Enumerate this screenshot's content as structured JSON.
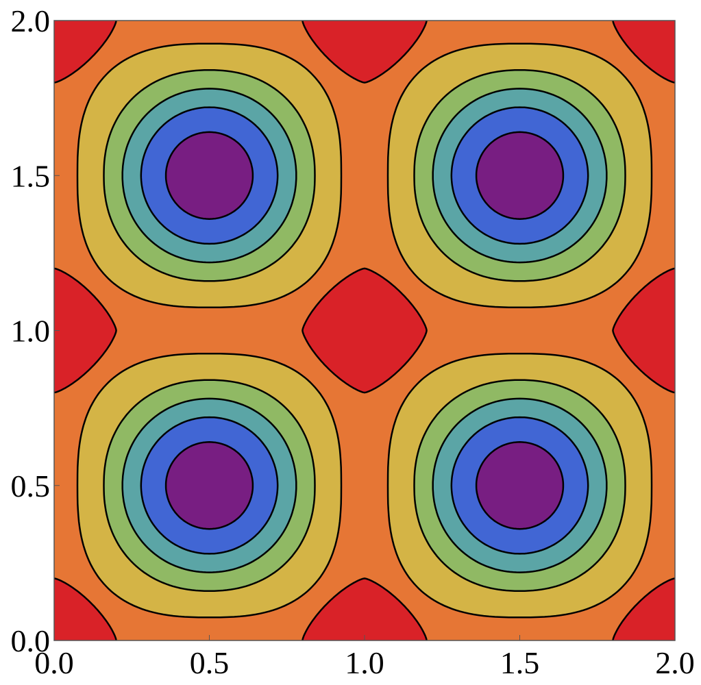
{
  "chart_data": {
    "type": "contour",
    "xlim": [
      0,
      2
    ],
    "ylim": [
      0,
      2
    ],
    "xticks": [
      {
        "value": 0,
        "label": "0.0"
      },
      {
        "value": 0.5,
        "label": "0.5"
      },
      {
        "value": 1,
        "label": "1.0"
      },
      {
        "value": 1.5,
        "label": "1.5"
      },
      {
        "value": 2,
        "label": "2.0"
      }
    ],
    "yticks": [
      {
        "value": 0,
        "label": "0.0"
      },
      {
        "value": 0.5,
        "label": "0.5"
      },
      {
        "value": 1,
        "label": "1.0"
      },
      {
        "value": 1.5,
        "label": "1.5"
      },
      {
        "value": 2,
        "label": "2.0"
      }
    ],
    "colors": [
      "#781e82",
      "#4166d4",
      "#5ba5a6",
      "#90b964",
      "#d4b446",
      "#e67635",
      "#d92228"
    ]
  }
}
